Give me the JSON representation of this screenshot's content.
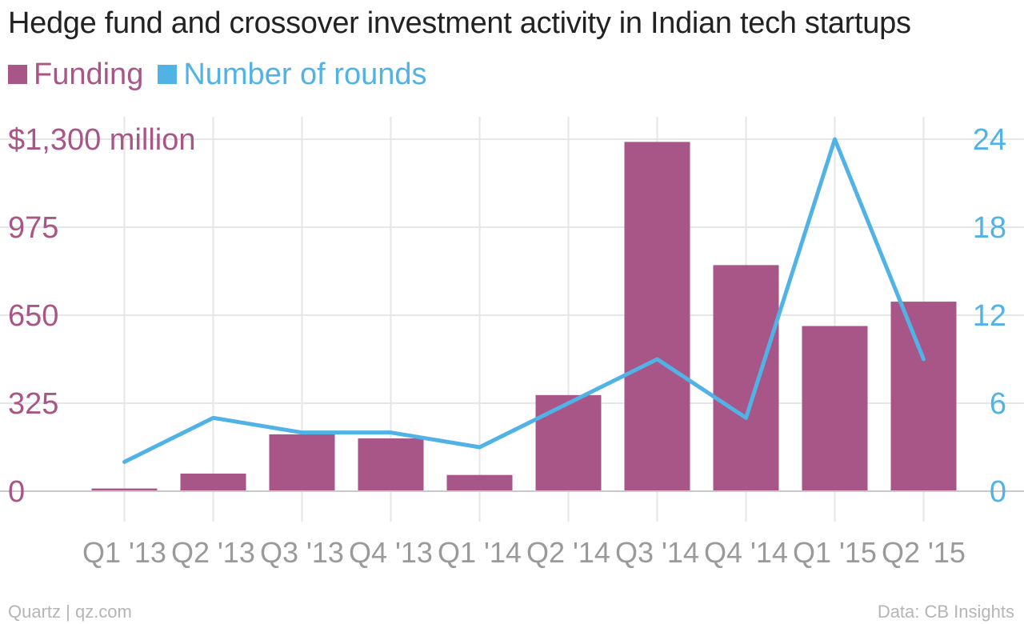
{
  "colors": {
    "funding": "#a85687",
    "rounds": "#51b2e5",
    "grid": "#e6e6e6",
    "axis_text": "#9a9a9a"
  },
  "footer": {
    "source_left": "Quartz | qz.com",
    "source_right": "Data: CB Insights"
  },
  "chart_data": {
    "type": "bar",
    "title": "Hedge fund and crossover investment activity in Indian tech startups",
    "categories": [
      "Q1 '13",
      "Q2 '13",
      "Q3 '13",
      "Q4 '13",
      "Q1 '14",
      "Q2 '14",
      "Q3 '14",
      "Q4 '14",
      "Q1 '15",
      "Q2 '15"
    ],
    "series": [
      {
        "name": "Funding",
        "type": "bar",
        "axis": "left",
        "values": [
          10,
          65,
          210,
          195,
          60,
          355,
          1290,
          835,
          610,
          700
        ]
      },
      {
        "name": "Number of rounds",
        "type": "line",
        "axis": "right",
        "values": [
          2,
          5,
          4,
          4,
          3,
          6,
          9,
          5,
          24,
          9
        ]
      }
    ],
    "y_left": {
      "ylim": [
        0,
        1300
      ],
      "ticks": [
        0,
        325,
        650,
        975,
        1300
      ],
      "tick_labels": [
        "0",
        "325",
        "650",
        "975",
        "$1,300 million"
      ]
    },
    "y_right": {
      "ylim": [
        0,
        24
      ],
      "ticks": [
        0,
        6,
        12,
        18,
        24
      ],
      "tick_labels": [
        "0",
        "6",
        "12",
        "18",
        "24"
      ]
    },
    "grid": true,
    "legend_position": "top-left"
  }
}
